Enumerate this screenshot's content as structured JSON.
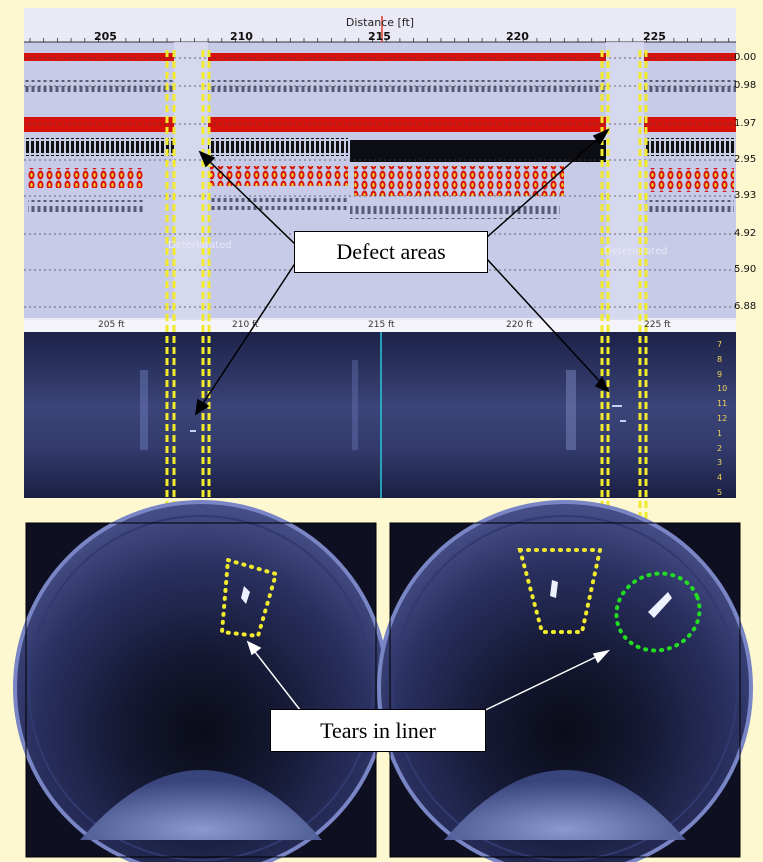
{
  "top_axis": {
    "title": "Distance [ft]",
    "ticks": [
      "205",
      "210",
      "215",
      "220",
      "225"
    ]
  },
  "depth_labels": [
    "0.00",
    "0.98",
    "1.97",
    "2.95",
    "3.93",
    "4.92",
    "5.90",
    "6.88"
  ],
  "video_ruler": [
    "205 ft",
    "210 ft",
    "215 ft",
    "220 ft",
    "225 ft"
  ],
  "clock_positions": [
    "7",
    "8",
    "9",
    "10",
    "11",
    "12",
    "1",
    "2",
    "3",
    "4",
    "5"
  ],
  "deteriorated_labels": [
    "Deteriorated",
    "Deteriorated"
  ],
  "callouts": {
    "defect": "Defect areas",
    "tears": "Tears in liner"
  },
  "colors": {
    "background": "#fdf8cf",
    "highlight_yellow": "#f2ea2c",
    "highlight_green": "#22dd22",
    "radar_red": "#e0150f",
    "pipe_blue": "#2d3566"
  }
}
